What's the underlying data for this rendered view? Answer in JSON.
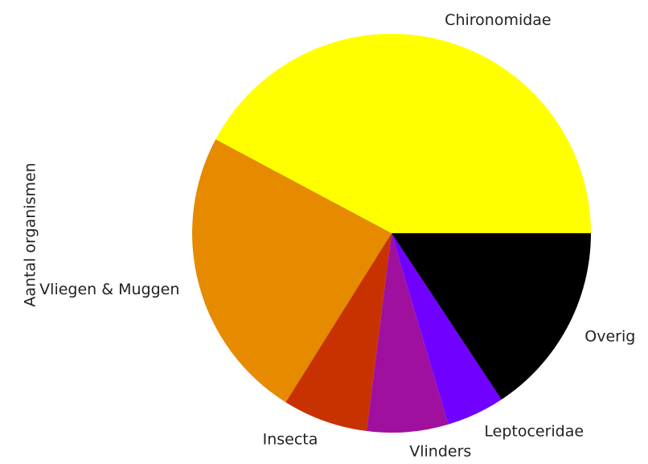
{
  "chart_data": {
    "type": "pie",
    "ylabel": "Aantal organismen",
    "categories": [
      "Chironomidae",
      "Vliegen & Muggen",
      "Insecta",
      "Vlinders",
      "Leptoceridae",
      "Overig"
    ],
    "values": [
      42.2,
      23.9,
      6.9,
      6.6,
      4.7,
      15.7
    ],
    "colors": [
      "#ffff00",
      "#e68a00",
      "#c83200",
      "#a0109e",
      "#7000ff",
      "#000000"
    ],
    "startangle": 0,
    "counterclock": true
  }
}
